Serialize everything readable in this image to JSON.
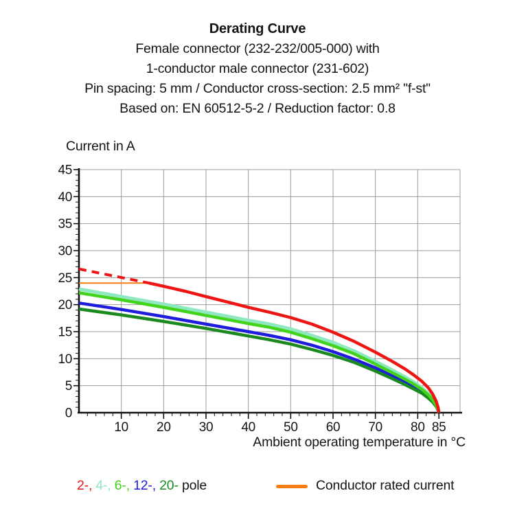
{
  "header": {
    "title": "Derating Curve",
    "subtitle_lines": [
      "Female connector (232-232/005-000) with",
      "1-conductor male connector (231-602)",
      "Pin spacing: 5 mm / Conductor cross-section: 2.5 mm² \"f-st\"",
      "Based on: EN 60512-5-2 / Reduction factor: 0.8"
    ]
  },
  "colors": {
    "grid": "#9b9b9b",
    "axis": "#111111",
    "text": "#141414",
    "red": "#ee1515",
    "light_green": "#8fe9c0",
    "green": "#44d31c",
    "blue": "#1f1cdb",
    "dark_green": "#1b8a1e",
    "orange": "#f57d14"
  },
  "chart_data": {
    "type": "line",
    "title": "Derating Curve",
    "ylabel": "Current in A",
    "xlabel": "Ambient operating temperature in °C",
    "xlim": [
      0,
      90
    ],
    "ylim": [
      0,
      45
    ],
    "xticks": [
      10,
      20,
      30,
      40,
      50,
      60,
      70,
      80,
      85
    ],
    "yticks": [
      0,
      5,
      10,
      15,
      20,
      25,
      30,
      35,
      40,
      45
    ],
    "x_minor_step": 2,
    "y_minor_step": 1,
    "grid": true,
    "legend_position": "bottom",
    "series": [
      {
        "name": "conductor-rated-current",
        "color": "#f57d14",
        "width": 2,
        "points": [
          [
            0,
            24
          ],
          [
            16.8,
            24
          ]
        ]
      },
      {
        "name": "2-pole-dashed",
        "color": "#ee1515",
        "width": 4,
        "dash": "11 8",
        "points": [
          [
            0,
            26.6
          ],
          [
            16.5,
            24
          ]
        ]
      },
      {
        "name": "4-pole",
        "color": "#8fe9c0",
        "width": 5,
        "points": [
          [
            0,
            22.9
          ],
          [
            10,
            21.5
          ],
          [
            20,
            20.1
          ],
          [
            30,
            18.6
          ],
          [
            40,
            17.1
          ],
          [
            45,
            16.4
          ],
          [
            50,
            15.5
          ],
          [
            55,
            14.3
          ],
          [
            60,
            13.0
          ],
          [
            65,
            11.4
          ],
          [
            70,
            9.5
          ],
          [
            74,
            7.9
          ],
          [
            77,
            6.6
          ],
          [
            79,
            5.7
          ],
          [
            81,
            4.6
          ],
          [
            82.5,
            3.5
          ],
          [
            83.5,
            2.6
          ],
          [
            84.4,
            1.4
          ],
          [
            84.9,
            0.5
          ],
          [
            85,
            0
          ]
        ]
      },
      {
        "name": "12-pole",
        "color": "#1f1cdb",
        "width": 4.5,
        "points": [
          [
            0,
            20.3
          ],
          [
            10,
            19.1
          ],
          [
            20,
            17.8
          ],
          [
            30,
            16.4
          ],
          [
            40,
            15.0
          ],
          [
            45,
            14.3
          ],
          [
            50,
            13.5
          ],
          [
            55,
            12.5
          ],
          [
            60,
            11.3
          ],
          [
            65,
            9.9
          ],
          [
            70,
            8.3
          ],
          [
            74,
            6.8
          ],
          [
            77,
            5.7
          ],
          [
            79,
            4.8
          ],
          [
            81,
            3.9
          ],
          [
            82.5,
            3.0
          ],
          [
            83.5,
            2.2
          ],
          [
            84.4,
            1.2
          ],
          [
            84.9,
            0.4
          ],
          [
            85,
            0
          ]
        ]
      },
      {
        "name": "20-pole",
        "color": "#1b8a1e",
        "width": 4.5,
        "points": [
          [
            0,
            19.2
          ],
          [
            10,
            18.1
          ],
          [
            20,
            16.9
          ],
          [
            30,
            15.6
          ],
          [
            40,
            14.2
          ],
          [
            45,
            13.5
          ],
          [
            50,
            12.7
          ],
          [
            55,
            11.7
          ],
          [
            60,
            10.6
          ],
          [
            65,
            9.3
          ],
          [
            70,
            7.7
          ],
          [
            74,
            6.3
          ],
          [
            77,
            5.2
          ],
          [
            79,
            4.4
          ],
          [
            81,
            3.6
          ],
          [
            82.5,
            2.7
          ],
          [
            83.5,
            2.0
          ],
          [
            84.4,
            1.1
          ],
          [
            84.9,
            0.3
          ],
          [
            85,
            0
          ]
        ]
      },
      {
        "name": "6-pole",
        "color": "#44d31c",
        "width": 4.5,
        "points": [
          [
            0,
            22.2
          ],
          [
            10,
            20.9
          ],
          [
            20,
            19.5
          ],
          [
            30,
            18.0
          ],
          [
            40,
            16.5
          ],
          [
            45,
            15.8
          ],
          [
            50,
            14.9
          ],
          [
            55,
            13.7
          ],
          [
            60,
            12.4
          ],
          [
            65,
            10.9
          ],
          [
            70,
            9.0
          ],
          [
            74,
            7.4
          ],
          [
            77,
            6.2
          ],
          [
            79,
            5.3
          ],
          [
            81,
            4.3
          ],
          [
            82.5,
            3.3
          ],
          [
            83.5,
            2.4
          ],
          [
            84.4,
            1.3
          ],
          [
            84.9,
            0.4
          ],
          [
            85,
            0
          ]
        ]
      },
      {
        "name": "2-pole",
        "color": "#ee1515",
        "width": 4.5,
        "points": [
          [
            16.5,
            24
          ],
          [
            20,
            23.4
          ],
          [
            25,
            22.5
          ],
          [
            30,
            21.5
          ],
          [
            35,
            20.5
          ],
          [
            40,
            19.5
          ],
          [
            45,
            18.6
          ],
          [
            50,
            17.6
          ],
          [
            55,
            16.4
          ],
          [
            60,
            14.9
          ],
          [
            65,
            13.2
          ],
          [
            70,
            11.2
          ],
          [
            74,
            9.5
          ],
          [
            77,
            8.1
          ],
          [
            79,
            7.0
          ],
          [
            81,
            5.8
          ],
          [
            82.5,
            4.6
          ],
          [
            83.5,
            3.5
          ],
          [
            84.3,
            2.2
          ],
          [
            84.8,
            1.0
          ],
          [
            85,
            0
          ]
        ]
      }
    ]
  },
  "legend": {
    "poles": [
      {
        "label": "2-",
        "color": "#ee1515"
      },
      {
        "label": "4-",
        "color": "#8fe9c0"
      },
      {
        "label": "6-",
        "color": "#44d31c"
      },
      {
        "label": "12-",
        "color": "#1f1cdb"
      },
      {
        "label": "20-",
        "color": "#1b8a1e"
      }
    ],
    "pole_suffix": "pole",
    "rated_label": "Conductor rated current",
    "rated_color": "#f57d14"
  }
}
